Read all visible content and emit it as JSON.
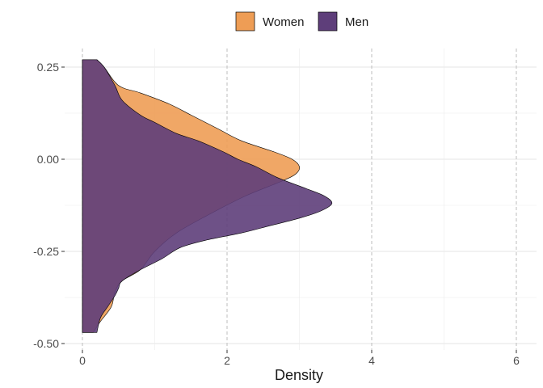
{
  "chart_data": {
    "type": "area",
    "orientation": "horizontal-density",
    "title": "",
    "xlabel": "Density",
    "ylabel": "",
    "xlim": [
      -0.15,
      6.3
    ],
    "ylim": [
      -0.5,
      0.28
    ],
    "x_ticks": [
      0,
      2,
      4,
      6
    ],
    "x_tick_labels": [
      "0",
      "2",
      "4",
      "6"
    ],
    "y_ticks": [
      0.25,
      0.0,
      -0.25,
      -0.5
    ],
    "y_tick_labels": [
      "0.25",
      "0.00",
      "-0.25",
      "-0.50"
    ],
    "x_minor_gridlines": [
      1,
      3,
      5
    ],
    "y_minor_gridlines": [
      0.125,
      -0.125,
      -0.375
    ],
    "x_major_dashed": true,
    "grid": true,
    "legend_position": "top",
    "series": [
      {
        "name": "Women",
        "color": "#EE9D55",
        "y": [
          0.27,
          0.25,
          0.2,
          0.18,
          0.15,
          0.12,
          0.1,
          0.08,
          0.05,
          0.02,
          0.0,
          -0.02,
          -0.04,
          -0.06,
          -0.1,
          -0.15,
          -0.2,
          -0.25,
          -0.3,
          -0.33,
          -0.36,
          -0.4,
          -0.44,
          -0.47
        ],
        "density": [
          0.2,
          0.3,
          0.5,
          0.8,
          1.2,
          1.5,
          1.7,
          1.9,
          2.2,
          2.65,
          2.9,
          3.0,
          2.95,
          2.75,
          2.25,
          1.75,
          1.3,
          1.0,
          0.8,
          0.55,
          0.45,
          0.4,
          0.25,
          0.15
        ]
      },
      {
        "name": "Men",
        "color": "#5E3E7A",
        "y": [
          0.27,
          0.25,
          0.2,
          0.16,
          0.12,
          0.1,
          0.07,
          0.05,
          0.02,
          0.0,
          -0.02,
          -0.05,
          -0.08,
          -0.1,
          -0.12,
          -0.14,
          -0.16,
          -0.18,
          -0.2,
          -0.22,
          -0.24,
          -0.27,
          -0.3,
          -0.33,
          -0.35,
          -0.37,
          -0.4,
          -0.43,
          -0.47
        ],
        "density": [
          0.2,
          0.3,
          0.45,
          0.55,
          0.8,
          1.0,
          1.3,
          1.6,
          1.95,
          2.15,
          2.4,
          2.7,
          3.1,
          3.35,
          3.45,
          3.3,
          3.0,
          2.6,
          2.2,
          1.7,
          1.35,
          1.1,
          0.8,
          0.55,
          0.5,
          0.45,
          0.35,
          0.25,
          0.2
        ]
      }
    ]
  }
}
